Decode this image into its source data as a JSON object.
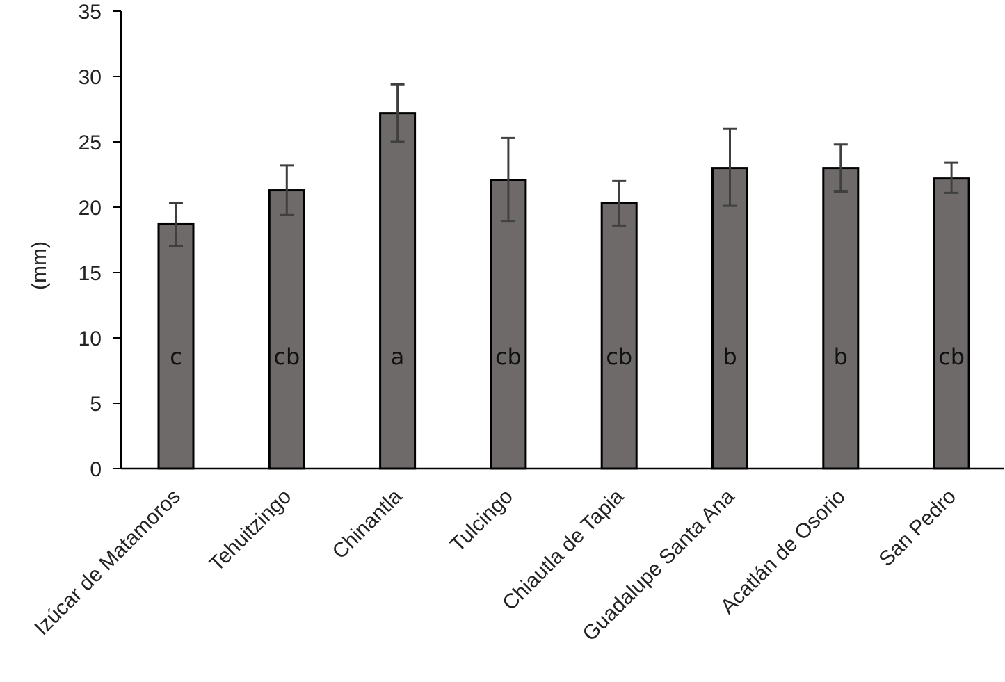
{
  "chart_data": {
    "type": "bar",
    "title": "",
    "xlabel": "",
    "ylabel": "(mm)",
    "ylim": [
      0,
      35
    ],
    "yticks": [
      0,
      5,
      10,
      15,
      20,
      25,
      30,
      35
    ],
    "ytick_labels": [
      "0",
      "5",
      "10",
      "15",
      "20",
      "25",
      "30",
      "35"
    ],
    "grid": false,
    "legend": "none",
    "categories": [
      "Izúcar de Matamoros",
      "Tehuitzingo",
      "Chinantla",
      "Tulcingo",
      "Chiautla de Tapia",
      "Guadalupe  Santa Ana",
      "Acatlán de Osorio",
      "San Pedro"
    ],
    "values": [
      18.7,
      21.3,
      27.2,
      22.1,
      20.3,
      23.0,
      23.0,
      22.2
    ],
    "error_low": [
      17.0,
      19.4,
      25.0,
      18.9,
      18.6,
      20.1,
      21.2,
      21.1
    ],
    "error_high": [
      20.3,
      23.2,
      29.4,
      25.3,
      22.0,
      26.0,
      24.8,
      23.4
    ],
    "bar_labels": [
      "c",
      "cb",
      "a",
      "cb",
      "cb",
      "b",
      "b",
      "cb"
    ],
    "colors": {
      "bar_fill": "#6f6a6a",
      "bar_edge": "#000000",
      "error_bar": "#3f3f3f",
      "axis": "#000000"
    }
  }
}
